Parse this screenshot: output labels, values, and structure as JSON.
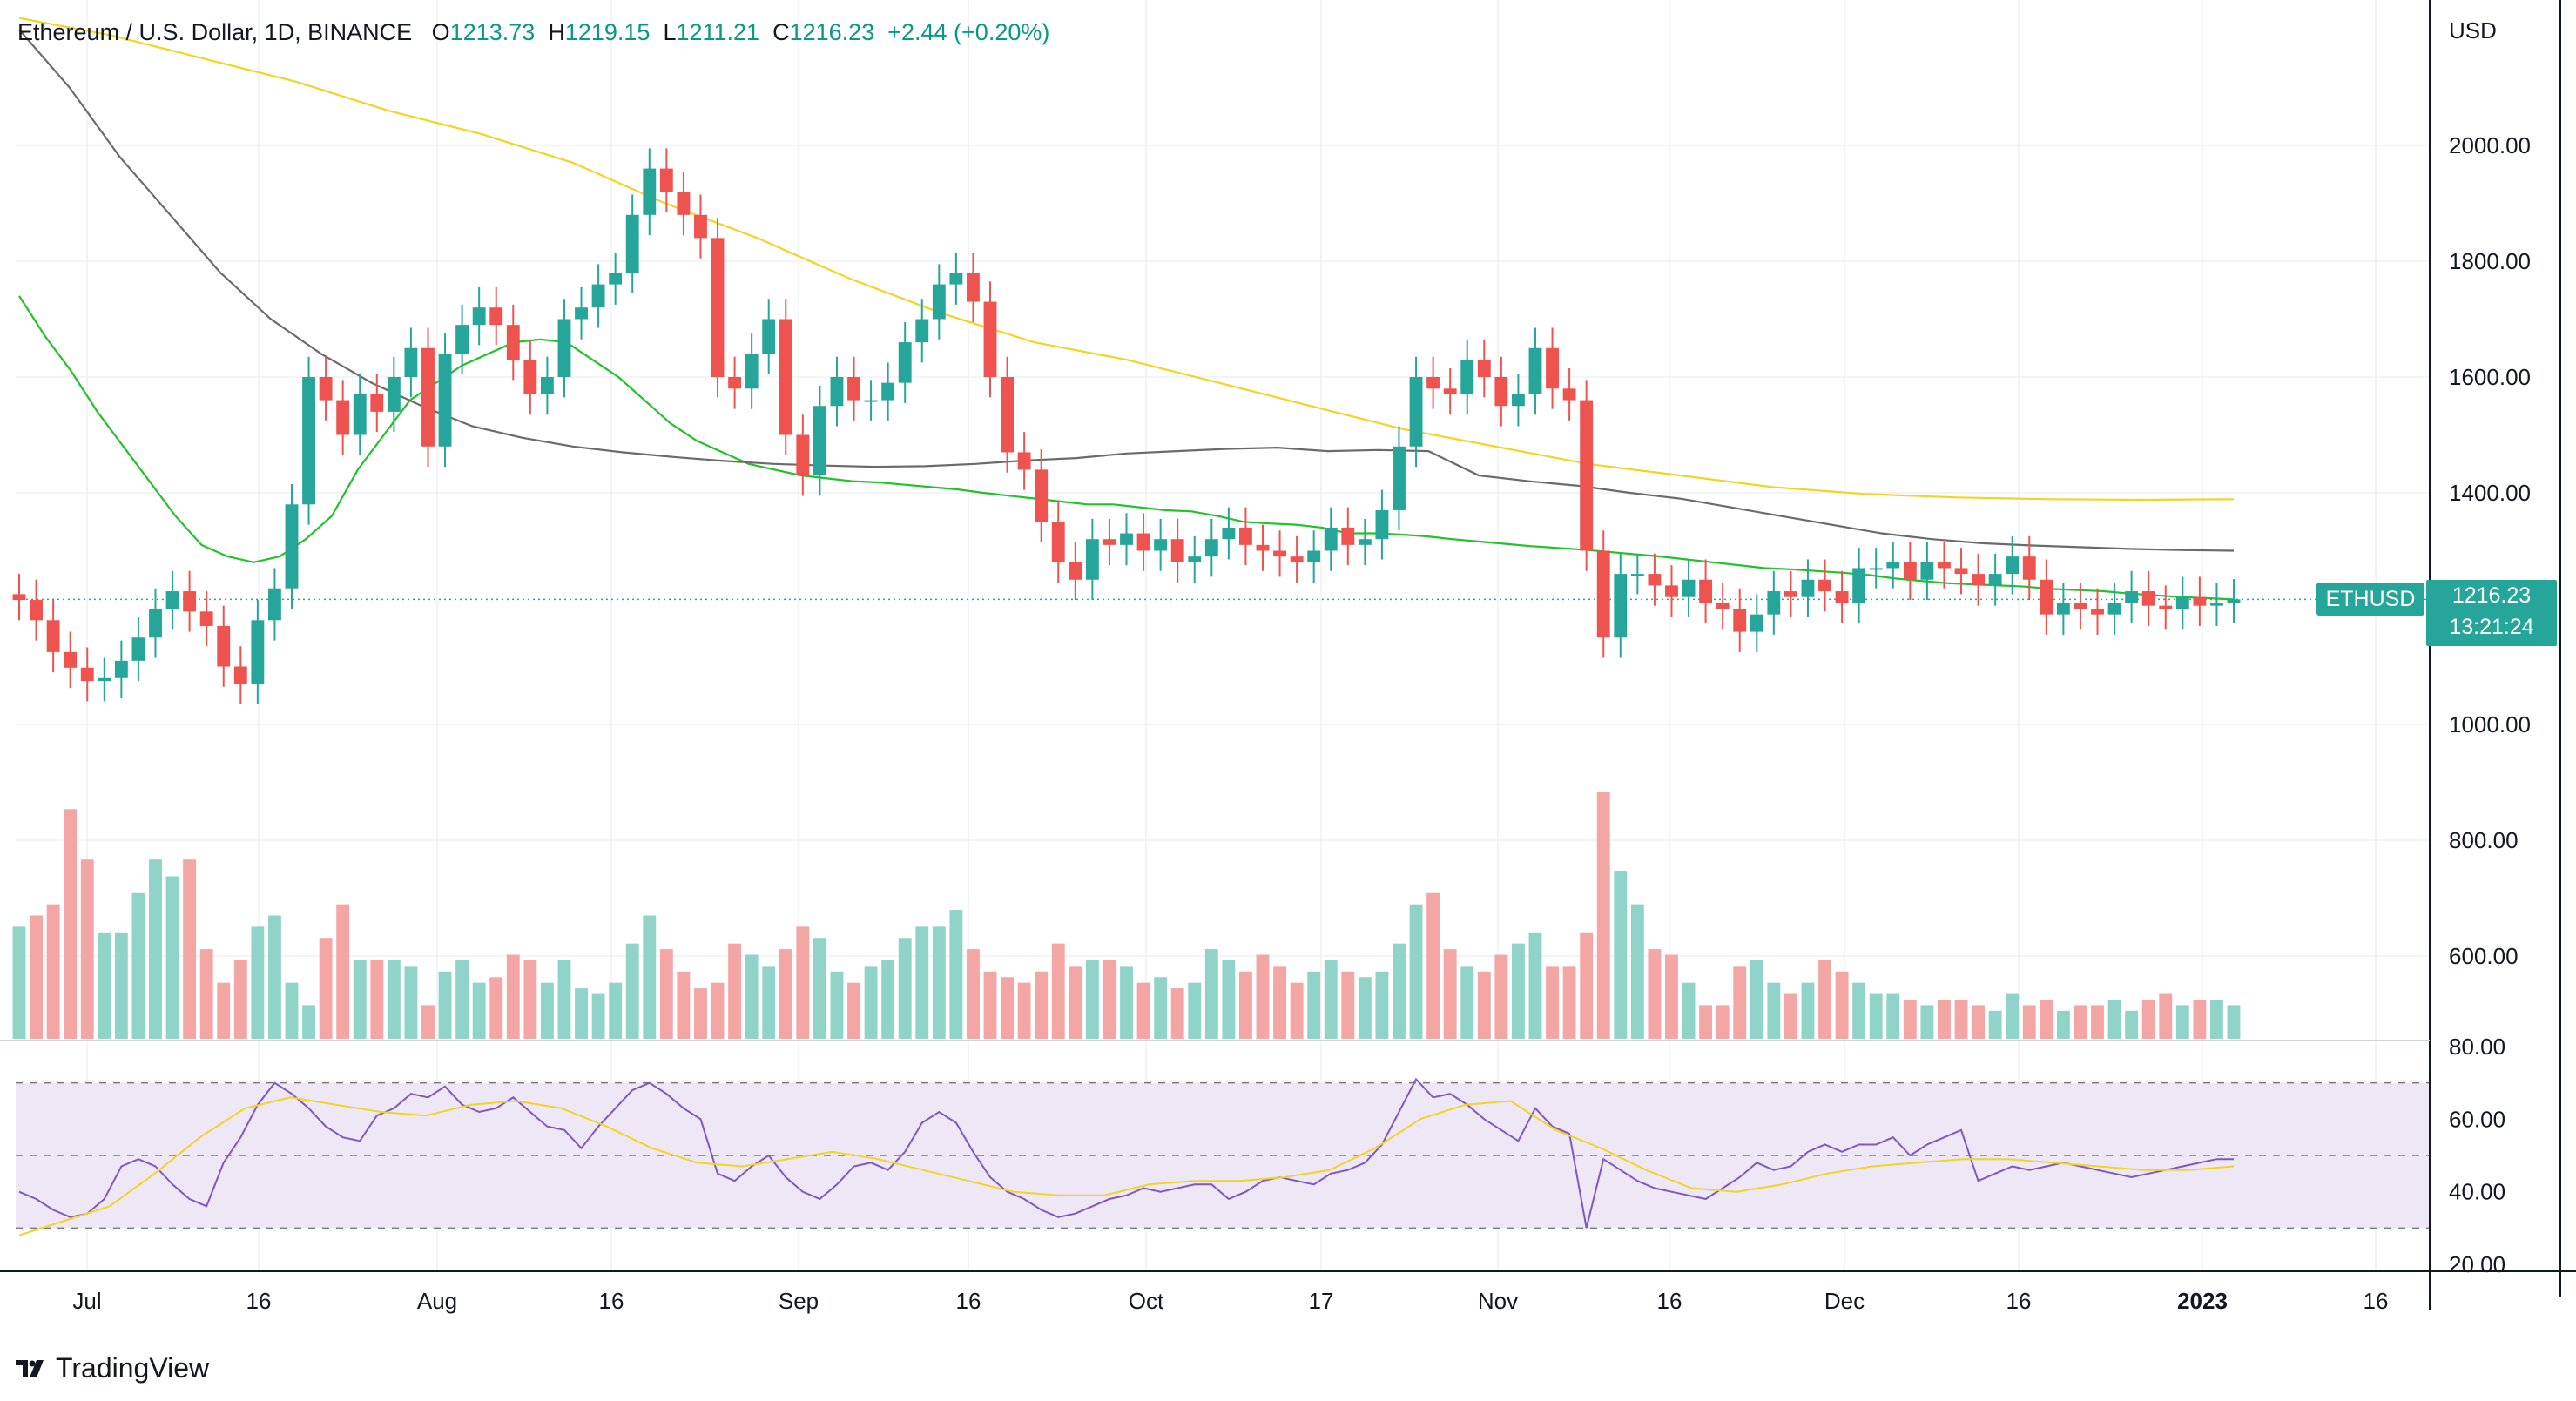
{
  "header": {
    "symbol": "Ethereum / U.S. Dollar, 1D, BINANCE",
    "o_label": "O",
    "o": "1213.73",
    "h_label": "H",
    "h": "1219.15",
    "l_label": "L",
    "l": "1211.21",
    "c_label": "C",
    "c": "1216.23",
    "change": "+2.44 (+0.20%)"
  },
  "price_axis": {
    "currency": "USD",
    "ticks": [
      "2000.00",
      "1800.00",
      "1600.00",
      "1400.00",
      "1000.00",
      "800.00",
      "600.00"
    ]
  },
  "rsi_axis": {
    "ticks": [
      "80.00",
      "60.00",
      "40.00",
      "20.00"
    ]
  },
  "time_axis": {
    "labels": [
      "Jul",
      "16",
      "Aug",
      "16",
      "Sep",
      "16",
      "Oct",
      "17",
      "Nov",
      "16",
      "Dec",
      "16",
      "2023",
      "16"
    ]
  },
  "last_price": {
    "ticker": "ETHUSD",
    "value": "1216.23",
    "countdown": "13:21:24"
  },
  "brand": "TradingView",
  "colors": {
    "up": "#26a69a",
    "down": "#ef5350",
    "ma_short": "#22c32a",
    "ma_mid": "#6b6b6b",
    "ma_long": "#f5d323",
    "rsi": "#7e57c2",
    "rsi_ma": "#f5d323"
  },
  "chart_data": [
    {
      "type": "candlestick",
      "title": "Ethereum / U.S. Dollar, 1D, BINANCE",
      "ylabel": "USD",
      "ylim": [
        870,
        2220
      ],
      "close": [
        1215,
        1180,
        1125,
        1098,
        1075,
        1080,
        1110,
        1150,
        1200,
        1230,
        1195,
        1170,
        1100,
        1070,
        1180,
        1235,
        1380,
        1600,
        1560,
        1500,
        1570,
        1540,
        1600,
        1650,
        1480,
        1640,
        1690,
        1720,
        1690,
        1630,
        1570,
        1600,
        1700,
        1720,
        1760,
        1780,
        1880,
        1960,
        1920,
        1880,
        1840,
        1600,
        1580,
        1640,
        1700,
        1500,
        1430,
        1550,
        1600,
        1560,
        1560,
        1590,
        1660,
        1700,
        1760,
        1780,
        1730,
        1600,
        1470,
        1440,
        1350,
        1280,
        1250,
        1320,
        1310,
        1330,
        1300,
        1320,
        1280,
        1290,
        1320,
        1340,
        1310,
        1300,
        1290,
        1280,
        1300,
        1340,
        1310,
        1320,
        1370,
        1480,
        1600,
        1580,
        1570,
        1630,
        1600,
        1550,
        1570,
        1650,
        1580,
        1560,
        1300,
        1150,
        1260,
        1260,
        1240,
        1220,
        1250,
        1210,
        1200,
        1160,
        1190,
        1230,
        1220,
        1250,
        1230,
        1210,
        1270,
        1270,
        1280,
        1250,
        1280,
        1270,
        1260,
        1240,
        1260,
        1290,
        1250,
        1190,
        1210,
        1200,
        1190,
        1210,
        1230,
        1205,
        1200,
        1220,
        1205,
        1210,
        1216
      ],
      "volume": [
        660,
        680,
        700,
        870,
        780,
        650,
        650,
        720,
        780,
        750,
        780,
        620,
        560,
        600,
        660,
        680,
        560,
        520,
        640,
        700,
        600,
        600,
        600,
        590,
        520,
        580,
        600,
        560,
        570,
        610,
        600,
        560,
        600,
        550,
        540,
        560,
        630,
        680,
        620,
        580,
        550,
        560,
        630,
        610,
        590,
        620,
        660,
        640,
        580,
        560,
        590,
        600,
        640,
        660,
        660,
        690,
        620,
        580,
        570,
        560,
        580,
        630,
        590,
        600,
        600,
        590,
        560,
        570,
        550,
        560,
        620,
        600,
        580,
        610,
        590,
        560,
        580,
        600,
        580,
        570,
        580,
        630,
        700,
        720,
        620,
        590,
        580,
        610,
        630,
        650,
        590,
        590,
        650,
        900,
        760,
        700,
        620,
        610,
        560,
        520,
        520,
        590,
        600,
        560,
        540,
        560,
        600,
        580,
        560,
        540,
        540,
        530,
        520,
        530,
        530,
        520,
        510,
        540,
        520,
        530,
        510,
        520,
        520,
        530,
        510,
        530,
        540,
        520,
        530,
        530,
        520
      ],
      "series": [
        {
          "name": "",
          "kind": "moving-average",
          "values": [
            1740,
            1670,
            1610,
            1540,
            1480,
            1420,
            1360,
            1310,
            1290,
            1280,
            1290,
            1320,
            1360,
            1440,
            1500,
            1560,
            1590,
            1620,
            1640,
            1660,
            1665,
            1660,
            1630,
            1600,
            1560,
            1520,
            1490,
            1470,
            1450,
            1440,
            1430,
            1425,
            1420,
            1418,
            1414,
            1410,
            1406,
            1400,
            1395,
            1390,
            1385,
            1380,
            1380,
            1375,
            1370,
            1368,
            1360,
            1350,
            1347,
            1345,
            1340,
            1330,
            1330,
            1328,
            1325,
            1320,
            1316,
            1312,
            1308,
            1305,
            1302,
            1298,
            1294,
            1290,
            1285,
            1280,
            1275,
            1270,
            1268,
            1265,
            1262,
            1258,
            1252,
            1248,
            1244,
            1242,
            1240,
            1238,
            1234,
            1232,
            1230,
            1226,
            1223,
            1220,
            1218,
            1216
          ]
        },
        {
          "name": "",
          "kind": "moving-average",
          "values": [
            2200,
            2100,
            1980,
            1880,
            1780,
            1700,
            1640,
            1590,
            1550,
            1515,
            1495,
            1480,
            1470,
            1462,
            1455,
            1450,
            1447,
            1445,
            1446,
            1450,
            1456,
            1460,
            1468,
            1472,
            1476,
            1478,
            1472,
            1474,
            1472,
            1430,
            1420,
            1412,
            1400,
            1390,
            1375,
            1360,
            1345,
            1330,
            1320,
            1313,
            1309,
            1306,
            1303,
            1301,
            1300
          ]
        },
        {
          "name": "",
          "kind": "moving-average",
          "values": [
            2220,
            2190,
            2150,
            2110,
            2060,
            2020,
            1970,
            1900,
            1840,
            1770,
            1710,
            1660,
            1630,
            1590,
            1550,
            1510,
            1480,
            1450,
            1430,
            1410,
            1398,
            1392,
            1389,
            1388,
            1389
          ]
        }
      ]
    },
    {
      "type": "line",
      "title": "RSI",
      "ylim": [
        17,
        82
      ],
      "series": [
        {
          "name": "",
          "kind": "oscillator",
          "values": [
            40,
            38,
            35,
            33,
            34,
            38,
            47,
            49,
            47,
            42,
            38,
            36,
            48,
            55,
            64,
            70,
            67,
            63,
            58,
            55,
            54,
            61,
            63,
            67,
            66,
            69,
            64,
            62,
            63,
            66,
            62,
            58,
            57,
            52,
            58,
            63,
            68,
            70,
            67,
            63,
            60,
            45,
            43,
            47,
            50,
            44,
            40,
            38,
            42,
            47,
            48,
            46,
            51,
            59,
            62,
            59,
            51,
            44,
            40,
            38,
            35,
            33,
            34,
            36,
            38,
            39,
            41,
            40,
            41,
            42,
            42,
            38,
            40,
            43,
            44,
            43,
            42,
            45,
            46,
            48,
            53,
            62,
            71,
            66,
            67,
            64,
            60,
            57,
            54,
            63,
            58,
            56,
            30,
            49,
            46,
            43,
            41,
            40,
            39,
            38,
            41,
            44,
            48,
            46,
            47,
            51,
            53,
            51,
            53,
            53,
            55,
            50,
            53,
            55,
            57,
            43,
            45,
            47,
            46,
            47,
            48,
            47,
            46,
            45,
            44,
            45,
            46,
            47,
            48,
            49,
            49
          ]
        },
        {
          "name": "",
          "kind": "rsi-moving-average",
          "values": [
            28,
            32,
            36,
            45,
            55,
            63,
            66,
            64,
            62,
            61,
            64,
            65,
            63,
            58,
            52,
            48,
            47,
            49,
            51,
            49,
            46,
            43,
            40,
            39,
            39,
            42,
            43,
            43,
            44,
            46,
            52,
            60,
            64,
            65,
            57,
            52,
            46,
            41,
            40,
            42,
            45,
            47,
            48,
            49,
            49,
            48,
            47,
            46,
            46,
            47
          ]
        }
      ],
      "bands": {
        "upper": 70,
        "middle": 50,
        "lower": 30
      }
    }
  ]
}
